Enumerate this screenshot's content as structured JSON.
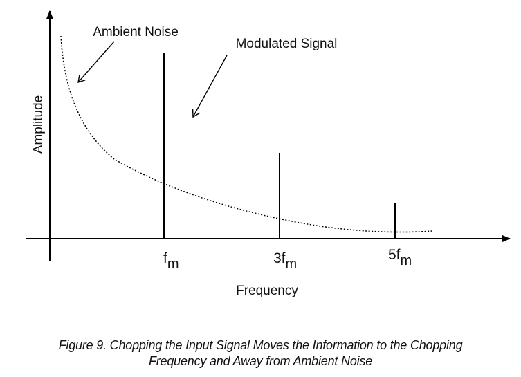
{
  "diagram": {
    "y_axis_label": "Amplitude",
    "x_axis_label": "Frequency",
    "annotations": {
      "ambient_noise": "Ambient Noise",
      "modulated_signal": "Modulated Signal"
    },
    "ticks": [
      {
        "base": "f",
        "sub": "m"
      },
      {
        "base": "3f",
        "sub": "m"
      },
      {
        "base": "5f",
        "sub": "m"
      }
    ],
    "colors": {
      "stroke": "#000000",
      "text": "#111111"
    }
  },
  "caption": {
    "line1": "Figure 9. Chopping the Input Signal Moves the Information to the Chopping",
    "line2": "Frequency and Away from Ambient Noise"
  }
}
